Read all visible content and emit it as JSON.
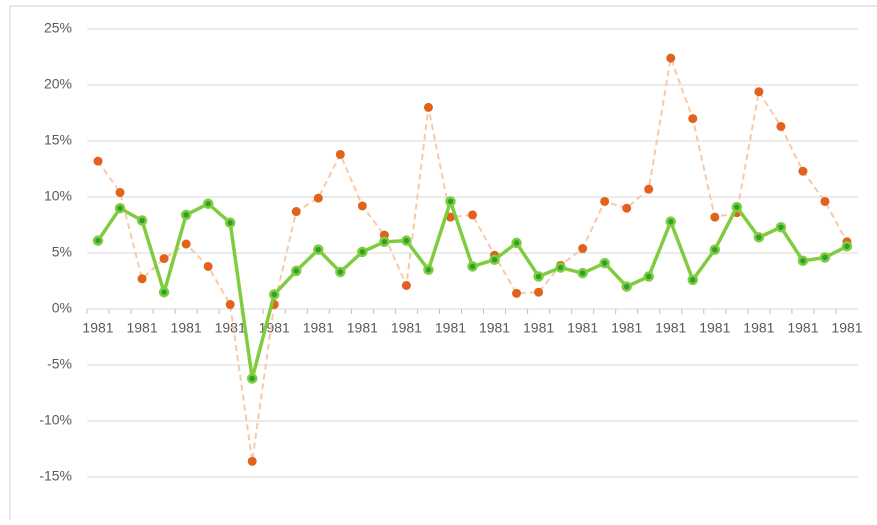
{
  "chart_data": {
    "type": "line",
    "categories": [
      "1981",
      null,
      "1981",
      null,
      "1981",
      null,
      "1981",
      null,
      "1981",
      null,
      "1981",
      null,
      "1981",
      null,
      "1981",
      null,
      "1981",
      null,
      "1981",
      null,
      "1981",
      null,
      "1981",
      null,
      "1981",
      null,
      "1981",
      null,
      "1981",
      null,
      "1981",
      null,
      "1981",
      null,
      "1981"
    ],
    "series": [
      {
        "color": "#e0621c",
        "line_color": "#f9c9a6",
        "dashed": true,
        "values": [
          13.2,
          10.4,
          2.7,
          4.5,
          5.8,
          3.8,
          0.4,
          -13.6,
          0.4,
          8.7,
          9.9,
          13.8,
          9.2,
          6.6,
          2.1,
          18.0,
          8.2,
          8.4,
          4.8,
          1.4,
          1.5,
          3.9,
          5.4,
          9.6,
          9.0,
          10.7,
          22.4,
          17.0,
          8.2,
          8.6,
          19.4,
          16.3,
          12.3,
          9.6,
          6.0
        ]
      },
      {
        "color": "#2ea02e",
        "line_color": "#7fcd3f",
        "dashed": false,
        "values": [
          6.1,
          9.0,
          7.9,
          1.5,
          8.4,
          9.4,
          7.7,
          -6.2,
          1.3,
          3.4,
          5.3,
          3.3,
          5.1,
          6.0,
          6.1,
          3.5,
          9.6,
          3.8,
          4.4,
          5.9,
          2.9,
          3.7,
          3.2,
          4.1,
          2.0,
          2.9,
          7.8,
          2.6,
          5.3,
          9.1,
          6.4,
          7.3,
          4.3,
          4.6,
          5.6
        ]
      }
    ],
    "ylim": [
      -15,
      25
    ],
    "yticks": [
      {
        "value": -15,
        "label": "-15%"
      },
      {
        "value": -10,
        "label": "-10%"
      },
      {
        "value": -5,
        "label": "-5%"
      },
      {
        "value": 0,
        "label": "0%"
      },
      {
        "value": 5,
        "label": "5%"
      },
      {
        "value": 10,
        "label": "10%"
      },
      {
        "value": 15,
        "label": "15%"
      },
      {
        "value": 20,
        "label": "20%"
      },
      {
        "value": 25,
        "label": "25%"
      }
    ],
    "grid": true
  }
}
